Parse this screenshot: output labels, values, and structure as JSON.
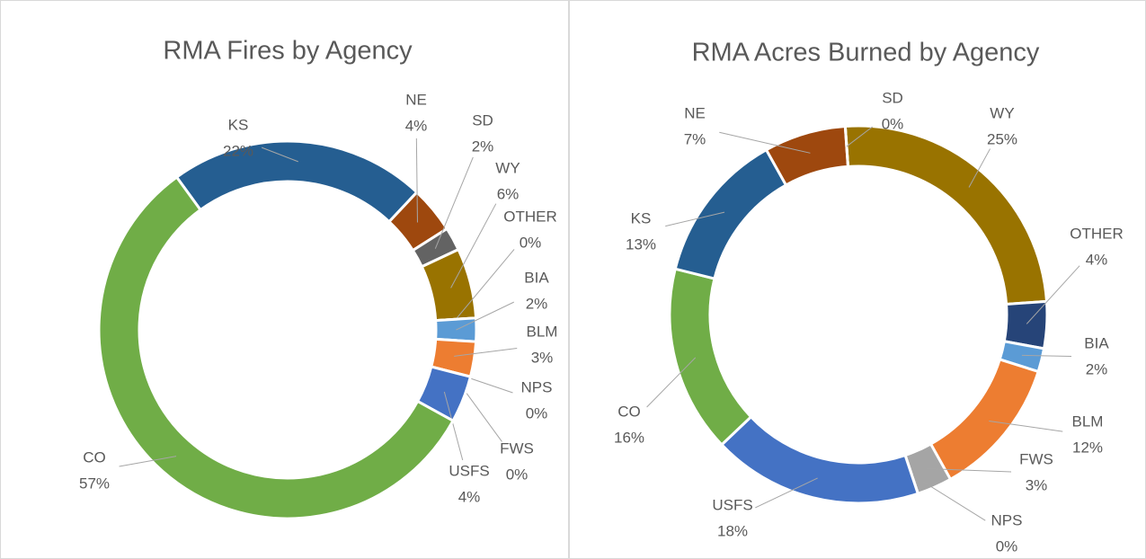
{
  "chart_data": [
    {
      "type": "doughnut",
      "title": "RMA Fires by Agency",
      "categories": [
        "KS",
        "NE",
        "SD",
        "WY",
        "OTHER",
        "BIA",
        "BLM",
        "NPS",
        "FWS",
        "USFS",
        "CO"
      ],
      "values": [
        22,
        4,
        2,
        6,
        0,
        2,
        3,
        0,
        0,
        4,
        57
      ],
      "value_labels": [
        "22%",
        "4%",
        "2%",
        "6%",
        "0%",
        "2%",
        "3%",
        "0%",
        "0%",
        "4%",
        "57%"
      ],
      "colors": [
        "#255e91",
        "#9e480e",
        "#636363",
        "#997300",
        "#264478",
        "#5b9bd5",
        "#ed7d31",
        "#a5a5a5",
        "#a5a5a5",
        "#4472c4",
        "#70ad47"
      ]
    },
    {
      "type": "doughnut",
      "title": "RMA Acres Burned by Agency",
      "categories": [
        "WY",
        "OTHER",
        "BIA",
        "BLM",
        "FWS",
        "NPS",
        "USFS",
        "CO",
        "KS",
        "NE",
        "SD"
      ],
      "values": [
        25,
        4,
        2,
        12,
        3,
        0,
        18,
        16,
        13,
        7,
        0
      ],
      "value_labels": [
        "25%",
        "4%",
        "2%",
        "12%",
        "3%",
        "0%",
        "18%",
        "16%",
        "13%",
        "7%",
        "0%"
      ],
      "colors": [
        "#997300",
        "#264478",
        "#5b9bd5",
        "#ed7d31",
        "#a5a5a5",
        "#636363",
        "#4472c4",
        "#70ad47",
        "#255e91",
        "#9e480e",
        "#636363"
      ]
    }
  ]
}
